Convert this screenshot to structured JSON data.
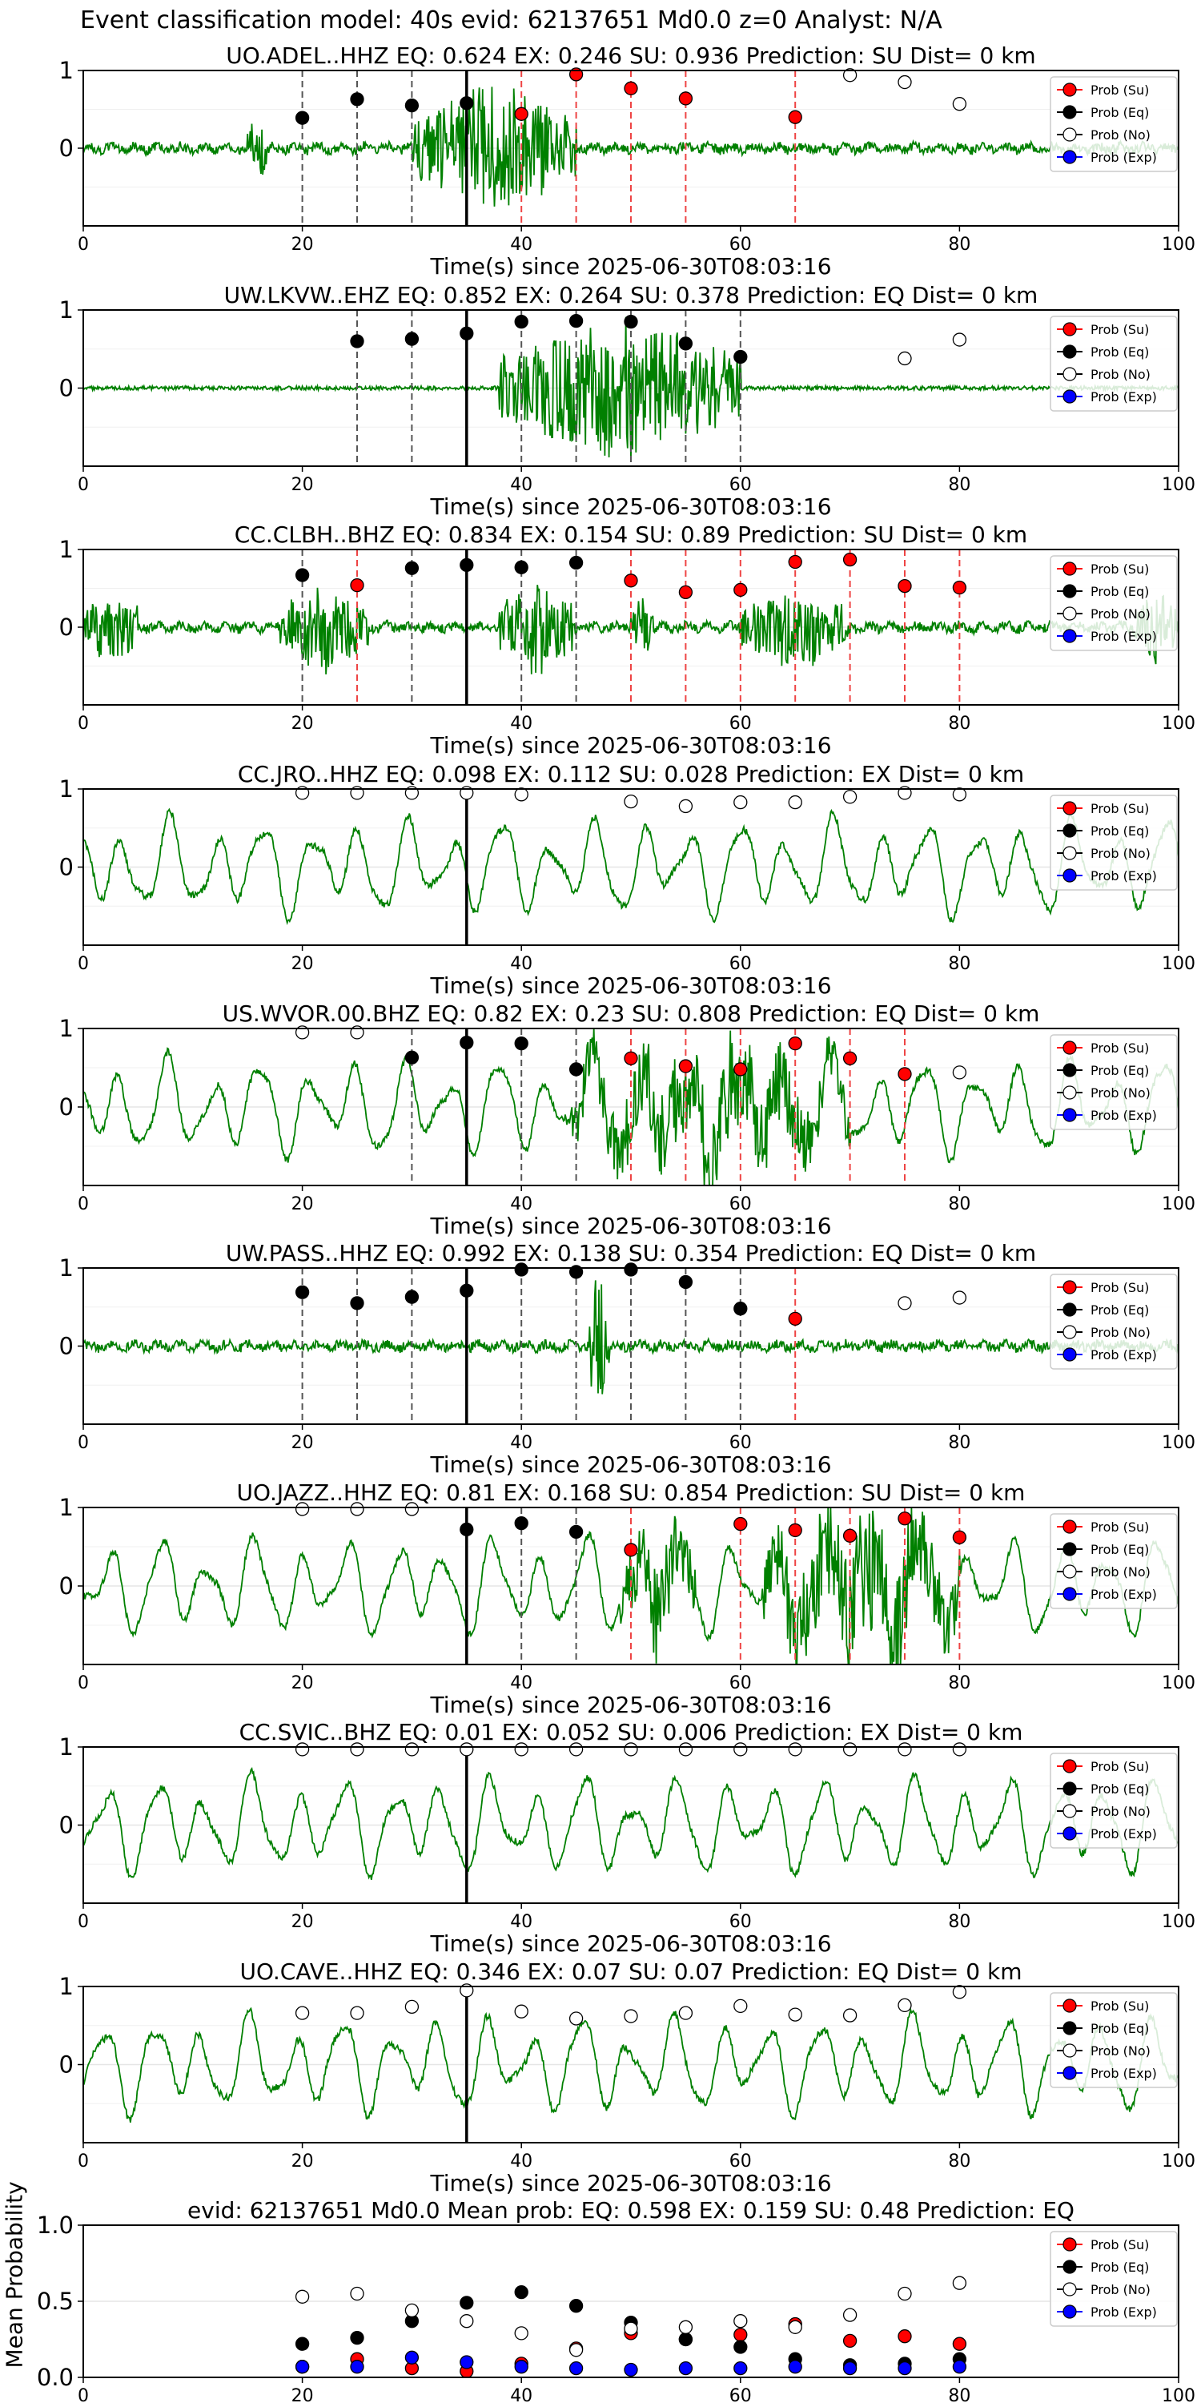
{
  "suptitle": "Event classification model: 40s evid: 62137651 Md0.0 z=0 Analyst: N/A",
  "colors": {
    "wave": "#008000",
    "su": "#ff0000",
    "eq": "#000000",
    "no": "#ffffff",
    "exp": "#0000ff",
    "pred_line": "#000000"
  },
  "legend": {
    "placement": "top-right",
    "entries": [
      "Prob (Su)",
      "Prob (Eq)",
      "Prob (No)",
      "Prob (Exp)"
    ]
  },
  "chart_data": [
    {
      "type": "scatter",
      "title": "UO.ADEL..HHZ   EQ: 0.624  EX: 0.246  SU: 0.936   Prediction: SU    Dist= 0 km",
      "xlabel": "Time(s) since 2025-06-30T08:03:16",
      "xlim": [
        0,
        100
      ],
      "ylim": [
        -1,
        1
      ],
      "xticks": [
        "0",
        "20",
        "40",
        "60",
        "80",
        "100"
      ],
      "yticks": [
        "1",
        "0"
      ],
      "prediction_time": 35,
      "waveform": {
        "style": "noise",
        "bursts": [
          [
            15,
            17,
            0.45
          ],
          [
            30,
            45,
            0.9
          ]
        ]
      },
      "points": [
        {
          "x": 20,
          "y": 0.39,
          "cls": "eq"
        },
        {
          "x": 25,
          "y": 0.63,
          "cls": "eq"
        },
        {
          "x": 30,
          "y": 0.55,
          "cls": "eq"
        },
        {
          "x": 35,
          "y": 0.58,
          "cls": "eq"
        },
        {
          "x": 40,
          "y": 0.44,
          "cls": "su"
        },
        {
          "x": 45,
          "y": 0.95,
          "cls": "su"
        },
        {
          "x": 50,
          "y": 0.77,
          "cls": "su"
        },
        {
          "x": 55,
          "y": 0.64,
          "cls": "su"
        },
        {
          "x": 65,
          "y": 0.4,
          "cls": "su"
        },
        {
          "x": 70,
          "y": 0.94,
          "cls": "no"
        },
        {
          "x": 75,
          "y": 0.85,
          "cls": "no"
        },
        {
          "x": 80,
          "y": 0.57,
          "cls": "no"
        }
      ]
    },
    {
      "type": "scatter",
      "title": "UW.LKVW..EHZ   EQ: 0.852  EX: 0.264  SU: 0.378   Prediction: EQ    Dist= 0 km",
      "xlabel": "Time(s) since 2025-06-30T08:03:16",
      "xlim": [
        0,
        100
      ],
      "ylim": [
        -1,
        1
      ],
      "xticks": [
        "0",
        "20",
        "40",
        "60",
        "80",
        "100"
      ],
      "yticks": [
        "1",
        "0"
      ],
      "prediction_time": 35,
      "waveform": {
        "style": "quiet",
        "bursts": [
          [
            38,
            60,
            1.0
          ]
        ]
      },
      "points": [
        {
          "x": 25,
          "y": 0.6,
          "cls": "eq"
        },
        {
          "x": 30,
          "y": 0.63,
          "cls": "eq"
        },
        {
          "x": 35,
          "y": 0.7,
          "cls": "eq"
        },
        {
          "x": 40,
          "y": 0.85,
          "cls": "eq"
        },
        {
          "x": 45,
          "y": 0.86,
          "cls": "eq"
        },
        {
          "x": 50,
          "y": 0.85,
          "cls": "eq"
        },
        {
          "x": 55,
          "y": 0.57,
          "cls": "eq"
        },
        {
          "x": 60,
          "y": 0.4,
          "cls": "eq"
        },
        {
          "x": 75,
          "y": 0.38,
          "cls": "no"
        },
        {
          "x": 80,
          "y": 0.62,
          "cls": "no"
        }
      ]
    },
    {
      "type": "scatter",
      "title": "CC.CLBH..BHZ   EQ: 0.834  EX: 0.154  SU: 0.89   Prediction: SU    Dist= 0 km",
      "xlabel": "Time(s) since 2025-06-30T08:03:16",
      "xlim": [
        0,
        100
      ],
      "ylim": [
        -1,
        1
      ],
      "xticks": [
        "0",
        "20",
        "40",
        "60",
        "80",
        "100"
      ],
      "yticks": [
        "1",
        "0"
      ],
      "prediction_time": 35,
      "waveform": {
        "style": "noise",
        "bursts": [
          [
            0,
            5,
            0.5
          ],
          [
            18,
            26,
            0.6
          ],
          [
            38,
            45,
            0.65
          ],
          [
            50,
            52,
            0.4
          ],
          [
            60,
            70,
            0.55
          ],
          [
            96,
            100,
            0.5
          ]
        ]
      },
      "points": [
        {
          "x": 20,
          "y": 0.67,
          "cls": "eq"
        },
        {
          "x": 30,
          "y": 0.76,
          "cls": "eq"
        },
        {
          "x": 35,
          "y": 0.8,
          "cls": "eq"
        },
        {
          "x": 40,
          "y": 0.77,
          "cls": "eq"
        },
        {
          "x": 45,
          "y": 0.83,
          "cls": "eq"
        },
        {
          "x": 25,
          "y": 0.54,
          "cls": "su"
        },
        {
          "x": 50,
          "y": 0.6,
          "cls": "su"
        },
        {
          "x": 55,
          "y": 0.45,
          "cls": "su"
        },
        {
          "x": 60,
          "y": 0.48,
          "cls": "su"
        },
        {
          "x": 65,
          "y": 0.84,
          "cls": "su"
        },
        {
          "x": 70,
          "y": 0.87,
          "cls": "su"
        },
        {
          "x": 75,
          "y": 0.53,
          "cls": "su"
        },
        {
          "x": 80,
          "y": 0.51,
          "cls": "su"
        }
      ]
    },
    {
      "type": "scatter",
      "title": "CC.JRO..HHZ   EQ: 0.098  EX: 0.112  SU: 0.028   Prediction: EX    Dist= 0 km",
      "xlabel": "Time(s) since 2025-06-30T08:03:16",
      "xlim": [
        0,
        100
      ],
      "ylim": [
        -1,
        1
      ],
      "xticks": [
        "0",
        "20",
        "40",
        "60",
        "80",
        "100"
      ],
      "yticks": [
        "1",
        "0"
      ],
      "prediction_time": 35,
      "waveform": {
        "style": "swell",
        "bursts": []
      },
      "points": [
        {
          "x": 20,
          "y": 0.95,
          "cls": "no"
        },
        {
          "x": 25,
          "y": 0.95,
          "cls": "no"
        },
        {
          "x": 30,
          "y": 0.95,
          "cls": "no"
        },
        {
          "x": 35,
          "y": 0.95,
          "cls": "no"
        },
        {
          "x": 40,
          "y": 0.93,
          "cls": "no"
        },
        {
          "x": 50,
          "y": 0.84,
          "cls": "no"
        },
        {
          "x": 55,
          "y": 0.78,
          "cls": "no"
        },
        {
          "x": 60,
          "y": 0.83,
          "cls": "no"
        },
        {
          "x": 65,
          "y": 0.83,
          "cls": "no"
        },
        {
          "x": 70,
          "y": 0.9,
          "cls": "no"
        },
        {
          "x": 75,
          "y": 0.95,
          "cls": "no"
        },
        {
          "x": 80,
          "y": 0.93,
          "cls": "no"
        }
      ]
    },
    {
      "type": "scatter",
      "title": "US.WVOR.00.BHZ   EQ: 0.82  EX: 0.23  SU: 0.808   Prediction: EQ    Dist= 0 km",
      "xlabel": "Time(s) since 2025-06-30T08:03:16",
      "xlim": [
        0,
        100
      ],
      "ylim": [
        -1,
        1
      ],
      "xticks": [
        "0",
        "20",
        "40",
        "60",
        "80",
        "100"
      ],
      "yticks": [
        "1",
        "0"
      ],
      "prediction_time": 35,
      "waveform": {
        "style": "swell",
        "bursts": [
          [
            44,
            70,
            0.7
          ]
        ]
      },
      "points": [
        {
          "x": 20,
          "y": 0.95,
          "cls": "no"
        },
        {
          "x": 25,
          "y": 0.95,
          "cls": "no"
        },
        {
          "x": 80,
          "y": 0.44,
          "cls": "no"
        },
        {
          "x": 30,
          "y": 0.63,
          "cls": "eq"
        },
        {
          "x": 35,
          "y": 0.82,
          "cls": "eq"
        },
        {
          "x": 40,
          "y": 0.81,
          "cls": "eq"
        },
        {
          "x": 45,
          "y": 0.48,
          "cls": "eq"
        },
        {
          "x": 50,
          "y": 0.62,
          "cls": "su"
        },
        {
          "x": 55,
          "y": 0.52,
          "cls": "su"
        },
        {
          "x": 60,
          "y": 0.48,
          "cls": "su"
        },
        {
          "x": 65,
          "y": 0.81,
          "cls": "su"
        },
        {
          "x": 70,
          "y": 0.62,
          "cls": "su"
        },
        {
          "x": 75,
          "y": 0.42,
          "cls": "su"
        }
      ]
    },
    {
      "type": "scatter",
      "title": "UW.PASS..HHZ   EQ: 0.992  EX: 0.138  SU: 0.354   Prediction: EQ    Dist= 0 km",
      "xlabel": "Time(s) since 2025-06-30T08:03:16",
      "xlim": [
        0,
        100
      ],
      "ylim": [
        -1,
        1
      ],
      "xticks": [
        "0",
        "20",
        "40",
        "60",
        "80",
        "100"
      ],
      "yticks": [
        "1",
        "0"
      ],
      "prediction_time": 35,
      "waveform": {
        "style": "noise",
        "bursts": [
          [
            46,
            48,
            0.95
          ]
        ]
      },
      "points": [
        {
          "x": 20,
          "y": 0.69,
          "cls": "eq"
        },
        {
          "x": 25,
          "y": 0.55,
          "cls": "eq"
        },
        {
          "x": 30,
          "y": 0.63,
          "cls": "eq"
        },
        {
          "x": 35,
          "y": 0.71,
          "cls": "eq"
        },
        {
          "x": 40,
          "y": 0.98,
          "cls": "eq"
        },
        {
          "x": 45,
          "y": 0.95,
          "cls": "eq"
        },
        {
          "x": 50,
          "y": 0.98,
          "cls": "eq"
        },
        {
          "x": 55,
          "y": 0.82,
          "cls": "eq"
        },
        {
          "x": 60,
          "y": 0.48,
          "cls": "eq"
        },
        {
          "x": 65,
          "y": 0.35,
          "cls": "su"
        },
        {
          "x": 75,
          "y": 0.55,
          "cls": "no"
        },
        {
          "x": 80,
          "y": 0.62,
          "cls": "no"
        }
      ]
    },
    {
      "type": "scatter",
      "title": "UO.JAZZ..HHZ   EQ: 0.81  EX: 0.168  SU: 0.854   Prediction: SU    Dist= 0 km",
      "xlabel": "Time(s) since 2025-06-30T08:03:16",
      "xlim": [
        0,
        100
      ],
      "ylim": [
        -1,
        1
      ],
      "xticks": [
        "0",
        "20",
        "40",
        "60",
        "80",
        "100"
      ],
      "yticks": [
        "1",
        "0"
      ],
      "prediction_time": 35,
      "waveform": {
        "style": "swell",
        "bursts": [
          [
            49,
            56,
            0.65
          ],
          [
            62,
            80,
            0.9
          ]
        ]
      },
      "points": [
        {
          "x": 20,
          "y": 0.98,
          "cls": "no"
        },
        {
          "x": 25,
          "y": 0.98,
          "cls": "no"
        },
        {
          "x": 30,
          "y": 0.98,
          "cls": "no"
        },
        {
          "x": 35,
          "y": 0.72,
          "cls": "eq"
        },
        {
          "x": 40,
          "y": 0.8,
          "cls": "eq"
        },
        {
          "x": 45,
          "y": 0.69,
          "cls": "eq"
        },
        {
          "x": 50,
          "y": 0.46,
          "cls": "su"
        },
        {
          "x": 60,
          "y": 0.79,
          "cls": "su"
        },
        {
          "x": 65,
          "y": 0.71,
          "cls": "su"
        },
        {
          "x": 70,
          "y": 0.64,
          "cls": "su"
        },
        {
          "x": 75,
          "y": 0.86,
          "cls": "su"
        },
        {
          "x": 80,
          "y": 0.62,
          "cls": "su"
        }
      ]
    },
    {
      "type": "scatter",
      "title": "CC.SVIC..BHZ   EQ: 0.01  EX: 0.052  SU: 0.006   Prediction: EX    Dist= 0 km",
      "xlabel": "Time(s) since 2025-06-30T08:03:16",
      "xlim": [
        0,
        100
      ],
      "ylim": [
        -1,
        1
      ],
      "xticks": [
        "0",
        "20",
        "40",
        "60",
        "80",
        "100"
      ],
      "yticks": [
        "1",
        "0"
      ],
      "prediction_time": 35,
      "waveform": {
        "style": "swell",
        "bursts": []
      },
      "points": [
        {
          "x": 20,
          "y": 0.97,
          "cls": "no"
        },
        {
          "x": 25,
          "y": 0.97,
          "cls": "no"
        },
        {
          "x": 30,
          "y": 0.97,
          "cls": "no"
        },
        {
          "x": 35,
          "y": 0.97,
          "cls": "no"
        },
        {
          "x": 40,
          "y": 0.97,
          "cls": "no"
        },
        {
          "x": 45,
          "y": 0.97,
          "cls": "no"
        },
        {
          "x": 50,
          "y": 0.97,
          "cls": "no"
        },
        {
          "x": 55,
          "y": 0.97,
          "cls": "no"
        },
        {
          "x": 60,
          "y": 0.97,
          "cls": "no"
        },
        {
          "x": 65,
          "y": 0.97,
          "cls": "no"
        },
        {
          "x": 70,
          "y": 0.97,
          "cls": "no"
        },
        {
          "x": 75,
          "y": 0.97,
          "cls": "no"
        },
        {
          "x": 80,
          "y": 0.97,
          "cls": "no"
        }
      ]
    },
    {
      "type": "scatter",
      "title": "UO.CAVE..HHZ   EQ: 0.346  EX: 0.07  SU: 0.07   Prediction: EQ    Dist= 0 km",
      "xlabel": "Time(s) since 2025-06-30T08:03:16",
      "xlim": [
        0,
        100
      ],
      "ylim": [
        -1,
        1
      ],
      "xticks": [
        "0",
        "20",
        "40",
        "60",
        "80",
        "100"
      ],
      "yticks": [
        "1",
        "0"
      ],
      "prediction_time": 35,
      "waveform": {
        "style": "swell",
        "bursts": []
      },
      "points": [
        {
          "x": 20,
          "y": 0.66,
          "cls": "no"
        },
        {
          "x": 25,
          "y": 0.66,
          "cls": "no"
        },
        {
          "x": 30,
          "y": 0.74,
          "cls": "no"
        },
        {
          "x": 35,
          "y": 0.95,
          "cls": "no"
        },
        {
          "x": 40,
          "y": 0.68,
          "cls": "no"
        },
        {
          "x": 45,
          "y": 0.59,
          "cls": "no"
        },
        {
          "x": 50,
          "y": 0.62,
          "cls": "no"
        },
        {
          "x": 55,
          "y": 0.66,
          "cls": "no"
        },
        {
          "x": 60,
          "y": 0.75,
          "cls": "no"
        },
        {
          "x": 65,
          "y": 0.64,
          "cls": "no"
        },
        {
          "x": 70,
          "y": 0.63,
          "cls": "no"
        },
        {
          "x": 75,
          "y": 0.76,
          "cls": "no"
        },
        {
          "x": 80,
          "y": 0.93,
          "cls": "no"
        }
      ]
    },
    {
      "type": "scatter",
      "title": "evid: 62137651   Md0.0    Mean prob:    EQ: 0.598   EX: 0.159   SU: 0.48    Prediction: EQ",
      "xlabel": "",
      "ylabel": "Mean Probability",
      "xlim": [
        0,
        100
      ],
      "ylim": [
        0,
        1
      ],
      "xticks": [
        "0",
        "20",
        "40",
        "60",
        "80",
        "100"
      ],
      "yticks": [
        "1.0",
        "0.5",
        "0.0"
      ],
      "x": [
        20,
        25,
        30,
        35,
        40,
        45,
        50,
        55,
        60,
        65,
        70,
        75,
        80
      ],
      "series": [
        {
          "name": "Prob (Su)",
          "cls": "su",
          "values": [
            0.07,
            0.12,
            0.06,
            0.04,
            0.09,
            0.19,
            0.29,
            0.25,
            0.28,
            0.35,
            0.24,
            0.27,
            0.22
          ]
        },
        {
          "name": "Prob (Eq)",
          "cls": "eq",
          "values": [
            0.22,
            0.26,
            0.37,
            0.49,
            0.56,
            0.47,
            0.36,
            0.25,
            0.2,
            0.12,
            0.08,
            0.09,
            0.12
          ]
        },
        {
          "name": "Prob (No)",
          "cls": "no",
          "values": [
            0.53,
            0.55,
            0.44,
            0.37,
            0.29,
            0.18,
            0.32,
            0.33,
            0.37,
            0.33,
            0.41,
            0.55,
            0.62
          ]
        },
        {
          "name": "Prob (Exp)",
          "cls": "exp",
          "values": [
            0.07,
            0.07,
            0.13,
            0.1,
            0.07,
            0.06,
            0.05,
            0.06,
            0.06,
            0.07,
            0.06,
            0.06,
            0.07
          ]
        }
      ]
    }
  ]
}
